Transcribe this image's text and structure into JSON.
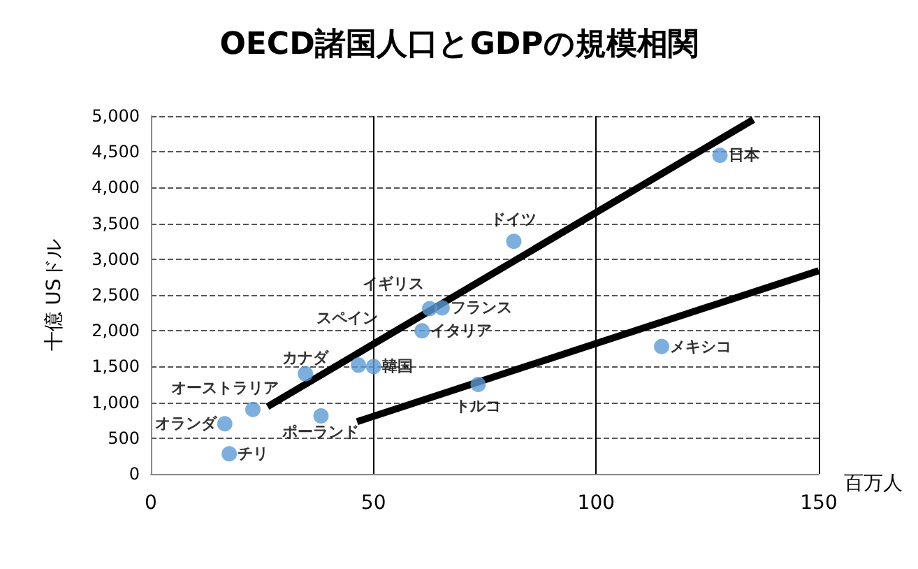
{
  "chart_data": {
    "type": "scatter",
    "title": "OECD諸国人口とGDPの規模相関",
    "xlabel": "百万人",
    "ylabel": "十億 USドル",
    "series": [
      {
        "color": "#5b9bd5",
        "x": [
          16.6,
          17.6,
          22.9,
          34.7,
          38.2,
          46.6,
          50,
          62.6,
          65.4,
          60.9,
          81.5,
          127.8,
          114.7,
          73.5
        ],
        "values": [
          700,
          280,
          900,
          1400,
          810,
          1520,
          1500,
          2310,
          2320,
          2000,
          3250,
          4450,
          1780,
          1250
        ]
      },
      {
        "type": "line",
        "marker": "none",
        "color": "#000000",
        "x": [
          26.2,
          135.3
        ],
        "values": [
          940,
          4950
        ]
      },
      {
        "type": "line",
        "marker": "none",
        "color": "#000000",
        "x": [
          46.3,
          150
        ],
        "values": [
          730,
          2840
        ]
      }
    ],
    "annotations": [
      {
        "text": "オランダ",
        "x": 16.6,
        "y": 700
      },
      {
        "text": "チリ",
        "x": 17.6,
        "y": 280
      },
      {
        "text": "オーストラリア",
        "x": 22.9,
        "y": 900
      },
      {
        "text": "カナダ",
        "x": 34.7,
        "y": 1400
      },
      {
        "text": "ポーランド",
        "x": 38.2,
        "y": 810
      },
      {
        "text": "スペイン",
        "x": 46.6,
        "y": 1520
      },
      {
        "text": "韓国",
        "x": 50,
        "y": 1500
      },
      {
        "text": "イギリス",
        "x": 62.6,
        "y": 2310
      },
      {
        "text": "フランス",
        "x": 65.4,
        "y": 2320
      },
      {
        "text": "イタリア",
        "x": 60.9,
        "y": 2000
      },
      {
        "text": "ドイツ",
        "x": 81.5,
        "y": 3250
      },
      {
        "text": "日本",
        "x": 127.8,
        "y": 4450
      },
      {
        "text": "メキシコ",
        "x": 114.7,
        "y": 1780
      },
      {
        "text": "トルコ",
        "x": 73.5,
        "y": 1250
      }
    ],
    "xlim": [
      0,
      150
    ],
    "xticks": [
      0,
      50,
      100,
      150
    ],
    "ylim": [
      0,
      5000
    ],
    "yticks": [
      0,
      500,
      {
        "value": 1000,
        "label": "1,000"
      },
      {
        "value": 1500,
        "label": "1,500"
      },
      {
        "value": 2000,
        "label": "2,000"
      },
      {
        "value": 2500,
        "label": "2,500"
      },
      {
        "value": 3000,
        "label": "3,000"
      },
      {
        "value": 3500,
        "label": "3,500"
      },
      {
        "value": 4000,
        "label": "4,000"
      },
      {
        "value": 4500,
        "label": "4,500"
      },
      {
        "value": 5000,
        "label": "5,000"
      }
    ],
    "grid": true,
    "marker": "circle"
  }
}
